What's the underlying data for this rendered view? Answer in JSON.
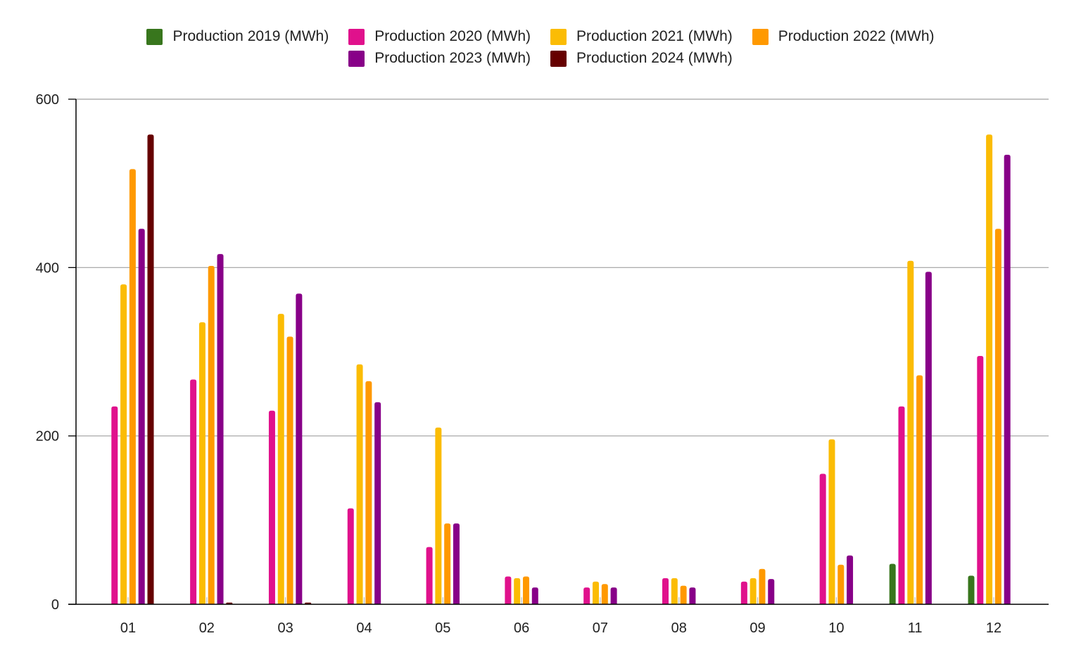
{
  "chart_data": {
    "type": "bar",
    "title": "",
    "xlabel": "",
    "ylabel": "",
    "ylim": [
      0,
      600
    ],
    "yticks": [
      "0",
      "200",
      "400",
      "600"
    ],
    "grid": "horizontal",
    "legend_position": "top-center",
    "categories": [
      "01",
      "02",
      "03",
      "04",
      "05",
      "06",
      "07",
      "08",
      "09",
      "10",
      "11",
      "12"
    ],
    "series": [
      {
        "name": "Production 2019 (MWh)",
        "color": "#38761d",
        "values": [
          0,
          0,
          0,
          0,
          0,
          0,
          0,
          0,
          0,
          0,
          48,
          34
        ]
      },
      {
        "name": "Production 2020 (MWh)",
        "color": "#e0118c",
        "values": [
          235,
          267,
          230,
          114,
          68,
          33,
          20,
          31,
          27,
          155,
          235,
          295
        ]
      },
      {
        "name": "Production 2021 (MWh)",
        "color": "#fbbc04",
        "values": [
          380,
          335,
          345,
          285,
          210,
          31,
          27,
          31,
          31,
          196,
          408,
          558
        ]
      },
      {
        "name": "Production 2022 (MWh)",
        "color": "#ff9900",
        "values": [
          517,
          402,
          318,
          265,
          96,
          33,
          24,
          22,
          42,
          47,
          272,
          446
        ]
      },
      {
        "name": "Production 2023 (MWh)",
        "color": "#880088",
        "values": [
          446,
          416,
          369,
          240,
          96,
          20,
          20,
          20,
          30,
          58,
          395,
          534
        ]
      },
      {
        "name": "Production 2024 (MWh)",
        "color": "#660000",
        "values": [
          558,
          2,
          2,
          0,
          0,
          0,
          0,
          0,
          0,
          0,
          0,
          0
        ]
      }
    ]
  }
}
